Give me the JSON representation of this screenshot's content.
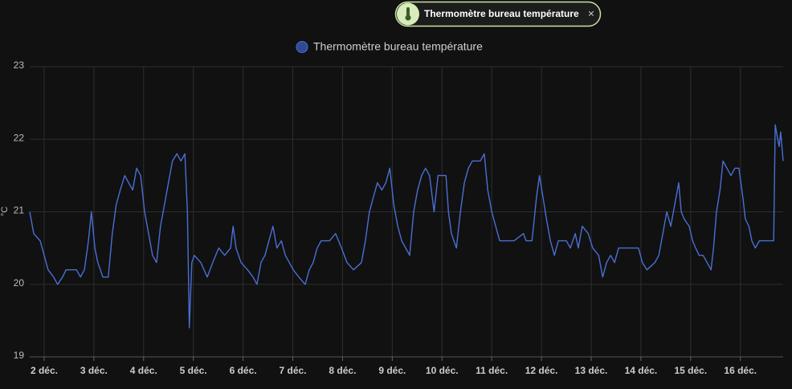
{
  "chip": {
    "label": "Thermomètre bureau température"
  },
  "chart_data": {
    "type": "line",
    "y_label": "°C",
    "grid": true,
    "xlim": [
      1.71,
      16.86
    ],
    "xticks": [
      {
        "value": 2,
        "label": "2 déc."
      },
      {
        "value": 3,
        "label": "3 déc."
      },
      {
        "value": 4,
        "label": "4 déc."
      },
      {
        "value": 5,
        "label": "5 déc."
      },
      {
        "value": 6,
        "label": "6 déc."
      },
      {
        "value": 7,
        "label": "7 déc."
      },
      {
        "value": 8,
        "label": "8 déc."
      },
      {
        "value": 9,
        "label": "9 déc."
      },
      {
        "value": 10,
        "label": "10 déc."
      },
      {
        "value": 11,
        "label": "11 déc."
      },
      {
        "value": 12,
        "label": "12 déc."
      },
      {
        "value": 13,
        "label": "13 déc."
      },
      {
        "value": 14,
        "label": "14 déc."
      },
      {
        "value": 15,
        "label": "15 déc."
      },
      {
        "value": 16,
        "label": "16 déc."
      }
    ],
    "ylim": [
      19,
      23
    ],
    "yticks": [
      19,
      20,
      21,
      22,
      23
    ],
    "x": [
      1.71,
      1.79,
      1.92,
      2.0,
      2.08,
      2.19,
      2.27,
      2.37,
      2.44,
      2.65,
      2.73,
      2.81,
      2.89,
      2.95,
      3.02,
      3.08,
      3.18,
      3.29,
      3.37,
      3.45,
      3.53,
      3.62,
      3.7,
      3.78,
      3.86,
      3.94,
      4.02,
      4.1,
      4.18,
      4.26,
      4.34,
      4.42,
      4.5,
      4.58,
      4.67,
      4.75,
      4.83,
      4.88,
      4.92,
      4.97,
      5.02,
      5.15,
      5.28,
      5.39,
      5.51,
      5.63,
      5.75,
      5.8,
      5.86,
      5.96,
      6.09,
      6.2,
      6.28,
      6.36,
      6.44,
      6.52,
      6.6,
      6.68,
      6.77,
      6.85,
      6.93,
      7.01,
      7.12,
      7.25,
      7.33,
      7.41,
      7.49,
      7.57,
      7.74,
      7.86,
      7.98,
      8.09,
      8.22,
      8.38,
      8.46,
      8.54,
      8.62,
      8.7,
      8.79,
      8.87,
      8.95,
      9.03,
      9.11,
      9.19,
      9.27,
      9.35,
      9.43,
      9.51,
      9.59,
      9.67,
      9.75,
      9.84,
      9.92,
      10.08,
      10.13,
      10.19,
      10.29,
      10.37,
      10.45,
      10.53,
      10.61,
      10.77,
      10.85,
      10.92,
      11.0,
      11.08,
      11.16,
      11.45,
      11.64,
      11.69,
      11.81,
      11.9,
      11.96,
      12.03,
      12.1,
      12.18,
      12.26,
      12.34,
      12.5,
      12.58,
      12.68,
      12.74,
      12.82,
      12.94,
      13.03,
      13.15,
      13.23,
      13.31,
      13.39,
      13.47,
      13.55,
      13.71,
      13.95,
      14.03,
      14.12,
      14.28,
      14.36,
      14.44,
      14.52,
      14.6,
      14.68,
      14.76,
      14.81,
      14.87,
      14.97,
      15.04,
      15.1,
      15.17,
      15.25,
      15.33,
      15.41,
      15.46,
      15.52,
      15.59,
      15.65,
      15.73,
      15.81,
      15.89,
      15.97,
      16.05,
      16.1,
      16.17,
      16.23,
      16.3,
      16.38,
      16.67,
      16.7,
      16.75,
      16.78,
      16.81,
      16.86
    ],
    "series": [
      {
        "name": "Thermomètre bureau température",
        "color": "#4a6fd4",
        "values": [
          21.0,
          20.7,
          20.6,
          20.4,
          20.2,
          20.1,
          20.0,
          20.1,
          20.2,
          20.2,
          20.1,
          20.2,
          20.6,
          21.0,
          20.5,
          20.3,
          20.1,
          20.1,
          20.7,
          21.1,
          21.3,
          21.5,
          21.4,
          21.3,
          21.6,
          21.5,
          21.0,
          20.7,
          20.4,
          20.3,
          20.8,
          21.1,
          21.4,
          21.7,
          21.8,
          21.7,
          21.8,
          21.0,
          19.4,
          20.3,
          20.4,
          20.3,
          20.1,
          20.3,
          20.5,
          20.4,
          20.5,
          20.8,
          20.5,
          20.3,
          20.2,
          20.1,
          20.0,
          20.3,
          20.4,
          20.6,
          20.8,
          20.5,
          20.6,
          20.4,
          20.3,
          20.2,
          20.1,
          20.0,
          20.2,
          20.3,
          20.5,
          20.6,
          20.6,
          20.7,
          20.5,
          20.3,
          20.2,
          20.3,
          20.6,
          21.0,
          21.2,
          21.4,
          21.3,
          21.4,
          21.6,
          21.1,
          20.8,
          20.6,
          20.5,
          20.4,
          21.0,
          21.3,
          21.5,
          21.6,
          21.5,
          21.0,
          21.5,
          21.5,
          21.0,
          20.7,
          20.5,
          21.0,
          21.4,
          21.6,
          21.7,
          21.7,
          21.8,
          21.3,
          21.0,
          20.8,
          20.6,
          20.6,
          20.7,
          20.6,
          20.6,
          21.2,
          21.5,
          21.2,
          20.9,
          20.6,
          20.4,
          20.6,
          20.6,
          20.5,
          20.7,
          20.5,
          20.8,
          20.7,
          20.5,
          20.4,
          20.1,
          20.3,
          20.4,
          20.3,
          20.5,
          20.5,
          20.5,
          20.3,
          20.2,
          20.3,
          20.4,
          20.7,
          21.0,
          20.8,
          21.1,
          21.4,
          21.0,
          20.9,
          20.8,
          20.6,
          20.5,
          20.4,
          20.4,
          20.3,
          20.2,
          20.5,
          21.0,
          21.3,
          21.7,
          21.6,
          21.5,
          21.6,
          21.6,
          21.2,
          20.9,
          20.8,
          20.6,
          20.5,
          20.6,
          20.6,
          22.2,
          22.0,
          21.9,
          22.1,
          21.7
        ]
      }
    ]
  }
}
